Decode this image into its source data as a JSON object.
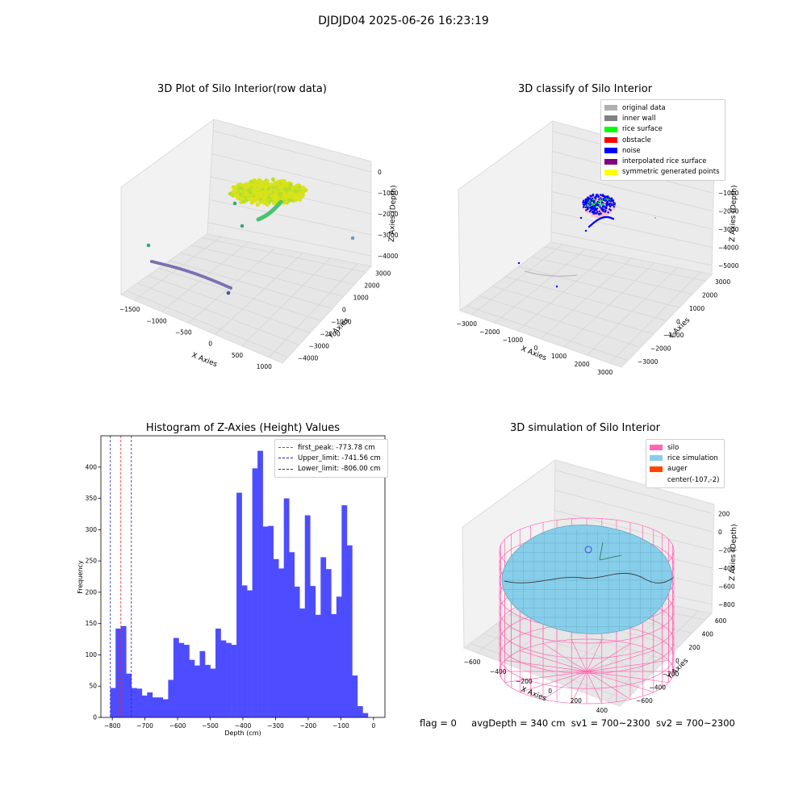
{
  "suptitle": "DJDJD04 2025-06-26 16:23:19",
  "footer": {
    "flag": "flag = 0",
    "avg_depth": "avgDepth = 340 cm",
    "sv1": "sv1 = 700~2300",
    "sv2": "sv2 = 700~2300"
  },
  "chart_data": [
    {
      "type": "scatter",
      "title": "3D Plot of Silo Interior(row data)",
      "xlabel": "X Axies",
      "ylabel": "Y Axies",
      "zlabel": "Z Axies (Depth)",
      "x_ticks": [
        "−1500",
        "−1000",
        "−500",
        "0",
        "500",
        "1000"
      ],
      "y_ticks": [
        "−4000",
        "−3000",
        "−2000",
        "−1000",
        "0",
        "1000",
        "2000",
        "3000"
      ],
      "z_ticks": [
        "−4000",
        "−3000",
        "−2000",
        "−1000",
        "0"
      ],
      "colormap": "viridis",
      "clusters": [
        {
          "label": "surface cloud",
          "color": "#d8e219"
        },
        {
          "label": "arc",
          "color": "#4cc26c"
        },
        {
          "label": "bottom line",
          "color": "#7a6fb0"
        }
      ]
    },
    {
      "type": "scatter",
      "title": "3D classify of Silo Interior",
      "xlabel": "X Axies",
      "ylabel": "Y Axies",
      "zlabel": "Z Axies (Depth)",
      "x_ticks": [
        "−3000",
        "−2000",
        "−1000",
        "0",
        "1000",
        "2000",
        "3000"
      ],
      "y_ticks": [
        "−3000",
        "−2000",
        "−1000",
        "0",
        "1000",
        "2000",
        "3000"
      ],
      "z_ticks": [
        "−5000",
        "−4000",
        "−3000",
        "−2000",
        "−1000",
        "0"
      ],
      "legend": [
        {
          "label": "original data",
          "color": "#b0b0b0"
        },
        {
          "label": "inner wall",
          "color": "#808080"
        },
        {
          "label": "rice surface",
          "color": "#00ff00"
        },
        {
          "label": "obstacle",
          "color": "#ff0000"
        },
        {
          "label": "noise",
          "color": "#0000ff"
        },
        {
          "label": "interpolated rice surface",
          "color": "#800080"
        },
        {
          "label": "symmetric generated points",
          "color": "#ffff00"
        }
      ]
    },
    {
      "type": "bar",
      "title": "Histogram of Z-Axies (Height) Values",
      "xlabel": "Depth (cm)",
      "ylabel": "Frequency",
      "xlim": [
        -835,
        35
      ],
      "ylim": [
        0,
        450
      ],
      "x_ticks": [
        -800,
        -700,
        -600,
        -500,
        -400,
        -300,
        -200,
        -100,
        0
      ],
      "y_ticks": [
        0,
        50,
        100,
        150,
        200,
        250,
        300,
        350,
        400
      ],
      "bin_start": -806,
      "bin_width": 16.1,
      "values": [
        47,
        142,
        146,
        70,
        47,
        46,
        35,
        40,
        32,
        32,
        29,
        60,
        127,
        119,
        116,
        92,
        83,
        106,
        84,
        78,
        142,
        123,
        119,
        116,
        359,
        211,
        203,
        398,
        426,
        305,
        306,
        253,
        238,
        350,
        264,
        209,
        174,
        323,
        210,
        164,
        256,
        237,
        165,
        193,
        339,
        275,
        67,
        18,
        7
      ],
      "bar_color": "#4d4dff",
      "vlines": [
        {
          "label": "first_peak: -773.78 cm",
          "x": -773.78,
          "color": "#ff2020"
        },
        {
          "label": "Upper_limit: -741.56 cm",
          "x": -741.56,
          "color": "#2020cc"
        },
        {
          "label": "Lower_limit: -806.00 cm",
          "x": -806.0,
          "color": "#2020cc"
        }
      ]
    },
    {
      "type": "surface",
      "title": "3D simulation of Silo Interior",
      "xlabel": "X Axies",
      "ylabel": "Y Axies",
      "zlabel": "Z Axies (Depth)",
      "x_ticks": [
        "−600",
        "−400",
        "−200",
        "0",
        "200",
        "400"
      ],
      "y_ticks": [
        "−600",
        "−400",
        "−200",
        "0",
        "200",
        "400",
        "600"
      ],
      "z_ticks": [
        "−800",
        "−600",
        "−400",
        "−200",
        "0",
        "200"
      ],
      "legend": [
        {
          "label": "silo",
          "color": "#ff69b4"
        },
        {
          "label": "rice simulation",
          "color": "#87ceeb"
        },
        {
          "label": "auger",
          "color": "#ff4500"
        },
        {
          "label": "center(-107,-2)",
          "color": ""
        }
      ]
    }
  ]
}
